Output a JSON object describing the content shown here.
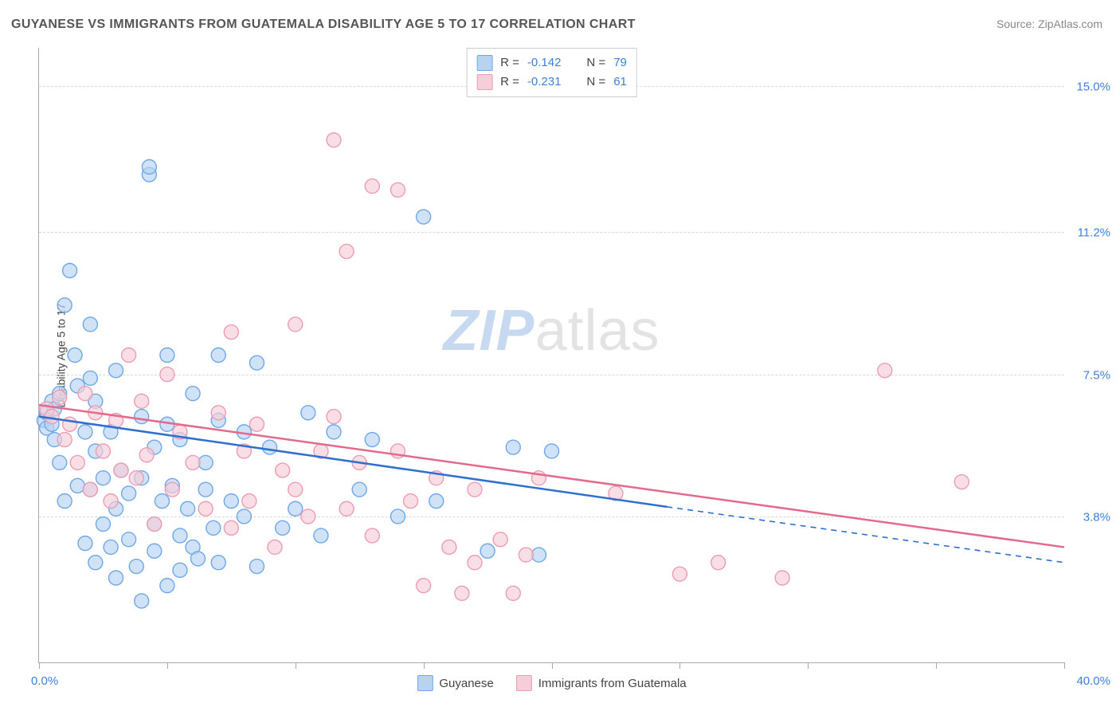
{
  "title": "GUYANESE VS IMMIGRANTS FROM GUATEMALA DISABILITY AGE 5 TO 17 CORRELATION CHART",
  "source_label": "Source: ",
  "source_name": "ZipAtlas.com",
  "yaxis_title": "Disability Age 5 to 17",
  "watermark": {
    "bold": "ZIP",
    "rest": "atlas"
  },
  "chart": {
    "type": "scatter-with-trendlines",
    "background": "#ffffff",
    "grid_color": "#d8d8d8",
    "axis_color": "#aaaaaa",
    "tick_label_color": "#3d7fd9",
    "xlim": [
      0,
      40
    ],
    "ylim": [
      0,
      16
    ],
    "xtick_positions": [
      0,
      5,
      10,
      15,
      20,
      25,
      30,
      35,
      40
    ],
    "xaxis_start_label": "0.0%",
    "xaxis_end_label": "40.0%",
    "ylines": [
      {
        "y": 3.8,
        "label": "3.8%"
      },
      {
        "y": 7.5,
        "label": "7.5%"
      },
      {
        "y": 11.2,
        "label": "11.2%"
      },
      {
        "y": 15.0,
        "label": "15.0%"
      }
    ],
    "marker_radius": 9,
    "marker_stroke_width": 1.4,
    "line_width": 2.5,
    "series": [
      {
        "name": "Guyanese",
        "fill": "#b6d3f2",
        "stroke": "#6fa8e8",
        "line_color": "#2f6fd0",
        "r": -0.142,
        "n": 79,
        "trendline": {
          "start_y": 6.4,
          "solid_end_x": 24.5,
          "solid_end_y": 4.05,
          "dash_end_x": 40,
          "dash_end_y": 2.6
        },
        "points": [
          [
            0.2,
            6.3
          ],
          [
            0.3,
            6.1
          ],
          [
            0.3,
            6.5
          ],
          [
            0.5,
            6.2
          ],
          [
            0.5,
            6.8
          ],
          [
            0.6,
            5.8
          ],
          [
            0.6,
            6.6
          ],
          [
            0.8,
            5.2
          ],
          [
            0.8,
            7.0
          ],
          [
            1.0,
            9.3
          ],
          [
            1.0,
            4.2
          ],
          [
            1.2,
            10.2
          ],
          [
            1.4,
            8.0
          ],
          [
            1.5,
            4.6
          ],
          [
            1.5,
            7.2
          ],
          [
            1.8,
            3.1
          ],
          [
            1.8,
            6.0
          ],
          [
            2.0,
            4.5
          ],
          [
            2.0,
            7.4
          ],
          [
            2.0,
            8.8
          ],
          [
            2.2,
            2.6
          ],
          [
            2.2,
            5.5
          ],
          [
            2.2,
            6.8
          ],
          [
            2.5,
            3.6
          ],
          [
            2.5,
            4.8
          ],
          [
            2.8,
            3.0
          ],
          [
            2.8,
            6.0
          ],
          [
            3.0,
            2.2
          ],
          [
            3.0,
            7.6
          ],
          [
            3.0,
            4.0
          ],
          [
            3.2,
            5.0
          ],
          [
            3.5,
            3.2
          ],
          [
            3.5,
            4.4
          ],
          [
            3.8,
            2.5
          ],
          [
            4.0,
            6.4
          ],
          [
            4.0,
            1.6
          ],
          [
            4.0,
            4.8
          ],
          [
            4.3,
            12.7
          ],
          [
            4.3,
            12.9
          ],
          [
            4.5,
            3.6
          ],
          [
            4.5,
            5.6
          ],
          [
            4.5,
            2.9
          ],
          [
            4.8,
            4.2
          ],
          [
            5.0,
            2.0
          ],
          [
            5.0,
            8.0
          ],
          [
            5.0,
            6.2
          ],
          [
            5.2,
            4.6
          ],
          [
            5.5,
            3.3
          ],
          [
            5.5,
            5.8
          ],
          [
            5.5,
            2.4
          ],
          [
            5.8,
            4.0
          ],
          [
            6.0,
            3.0
          ],
          [
            6.0,
            7.0
          ],
          [
            6.2,
            2.7
          ],
          [
            6.5,
            4.5
          ],
          [
            6.5,
            5.2
          ],
          [
            6.8,
            3.5
          ],
          [
            7.0,
            8.0
          ],
          [
            7.0,
            2.6
          ],
          [
            7.0,
            6.3
          ],
          [
            7.5,
            4.2
          ],
          [
            8.0,
            3.8
          ],
          [
            8.0,
            6.0
          ],
          [
            8.5,
            2.5
          ],
          [
            8.5,
            7.8
          ],
          [
            9.0,
            5.6
          ],
          [
            9.5,
            3.5
          ],
          [
            10.0,
            4.0
          ],
          [
            10.5,
            6.5
          ],
          [
            11.0,
            3.3
          ],
          [
            11.5,
            6.0
          ],
          [
            12.5,
            4.5
          ],
          [
            13.0,
            5.8
          ],
          [
            14.0,
            3.8
          ],
          [
            15.0,
            11.6
          ],
          [
            15.5,
            4.2
          ],
          [
            17.5,
            2.9
          ],
          [
            18.5,
            5.6
          ],
          [
            19.5,
            2.8
          ],
          [
            20.0,
            5.5
          ]
        ]
      },
      {
        "name": "Immigrants from Guatemala",
        "fill": "#f6cdd8",
        "stroke": "#eb9db2",
        "line_color": "#e36a8c",
        "r": -0.231,
        "n": 61,
        "trendline": {
          "start_y": 6.7,
          "solid_end_x": 40,
          "solid_end_y": 3.0
        },
        "points": [
          [
            0.3,
            6.6
          ],
          [
            0.5,
            6.4
          ],
          [
            0.8,
            6.9
          ],
          [
            1.0,
            5.8
          ],
          [
            1.2,
            6.2
          ],
          [
            1.5,
            5.2
          ],
          [
            1.8,
            7.0
          ],
          [
            2.0,
            4.5
          ],
          [
            2.2,
            6.5
          ],
          [
            2.5,
            5.5
          ],
          [
            2.8,
            4.2
          ],
          [
            3.0,
            6.3
          ],
          [
            3.2,
            5.0
          ],
          [
            3.5,
            8.0
          ],
          [
            3.8,
            4.8
          ],
          [
            4.0,
            6.8
          ],
          [
            4.2,
            5.4
          ],
          [
            4.5,
            3.6
          ],
          [
            5.0,
            7.5
          ],
          [
            5.2,
            4.5
          ],
          [
            5.5,
            6.0
          ],
          [
            6.0,
            5.2
          ],
          [
            6.5,
            4.0
          ],
          [
            7.0,
            6.5
          ],
          [
            7.5,
            3.5
          ],
          [
            7.5,
            8.6
          ],
          [
            8.0,
            5.5
          ],
          [
            8.2,
            4.2
          ],
          [
            8.5,
            6.2
          ],
          [
            9.2,
            3.0
          ],
          [
            9.5,
            5.0
          ],
          [
            10.0,
            4.5
          ],
          [
            10.0,
            8.8
          ],
          [
            10.5,
            3.8
          ],
          [
            11.0,
            5.5
          ],
          [
            11.5,
            6.4
          ],
          [
            11.5,
            13.6
          ],
          [
            12.0,
            4.0
          ],
          [
            12.0,
            10.7
          ],
          [
            12.5,
            5.2
          ],
          [
            13.0,
            12.4
          ],
          [
            13.0,
            3.3
          ],
          [
            14.0,
            5.5
          ],
          [
            14.0,
            12.3
          ],
          [
            14.5,
            4.2
          ],
          [
            15.0,
            2.0
          ],
          [
            15.5,
            4.8
          ],
          [
            16.0,
            3.0
          ],
          [
            16.5,
            1.8
          ],
          [
            17.0,
            4.5
          ],
          [
            17.0,
            2.6
          ],
          [
            18.0,
            3.2
          ],
          [
            18.5,
            1.8
          ],
          [
            19.0,
            2.8
          ],
          [
            19.5,
            4.8
          ],
          [
            22.5,
            4.4
          ],
          [
            25.0,
            2.3
          ],
          [
            26.5,
            2.6
          ],
          [
            29.0,
            2.2
          ],
          [
            33.0,
            7.6
          ],
          [
            36.0,
            4.7
          ]
        ]
      }
    ],
    "legend_top_labels": {
      "r_prefix": "R = ",
      "n_prefix": "N = "
    },
    "legend_bottom": [
      "Guyanese",
      "Immigrants from Guatemala"
    ]
  }
}
